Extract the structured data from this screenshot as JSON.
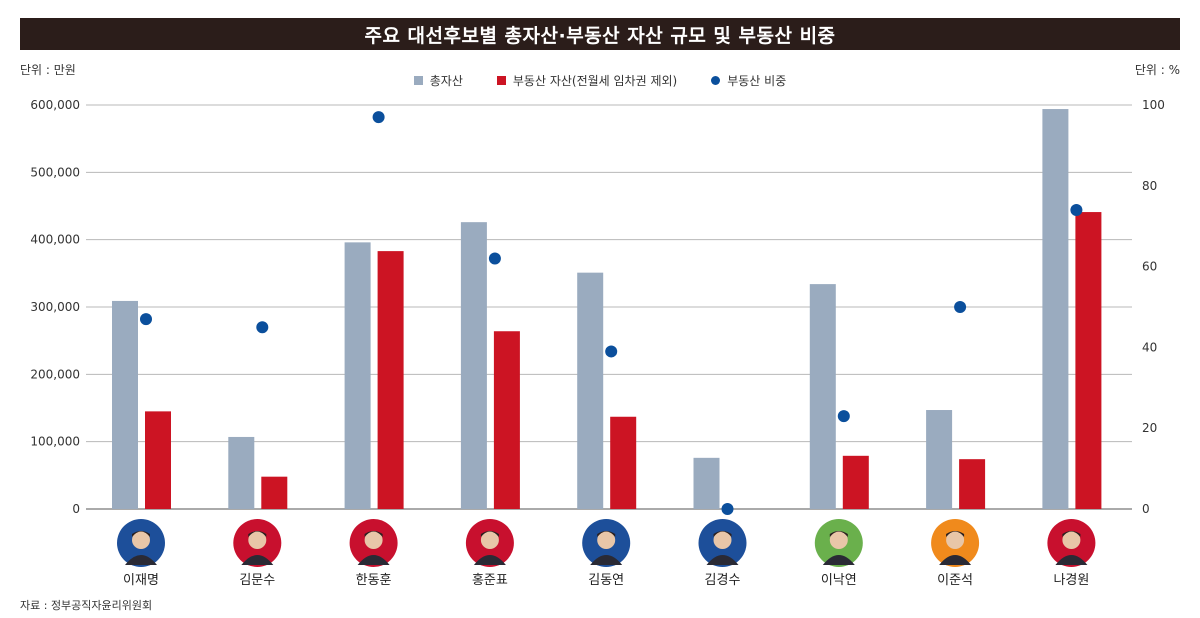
{
  "title": "주요 대선후보별 총자산·부동산 자산 규모 및 부동산 비중",
  "unit_left": "단위 : 만원",
  "unit_right": "단위 : %",
  "source": "자료 : 정부공직자윤리위원회",
  "colors": {
    "total": "#9aabbf",
    "realestate": "#cc1423",
    "ratio": "#0b4f9c",
    "title_bg": "#2b1d1a"
  },
  "chart_data": {
    "type": "bar",
    "categories": [
      "이재명",
      "김문수",
      "한동훈",
      "홍준표",
      "김동연",
      "김경수",
      "이낙연",
      "이준석",
      "나경원"
    ],
    "series": [
      {
        "name": "총자산",
        "axis": "left",
        "values": [
          309000,
          107000,
          396000,
          426000,
          351000,
          76000,
          334000,
          147000,
          594000
        ]
      },
      {
        "name": "부동산 자산(전월세 임차권 제외)",
        "axis": "left",
        "values": [
          145000,
          48000,
          383000,
          264000,
          137000,
          0,
          79000,
          74000,
          441000
        ]
      },
      {
        "name": "부동산 비중",
        "axis": "right",
        "type": "scatter",
        "values": [
          47,
          45,
          97,
          62,
          39,
          0,
          23,
          50,
          74
        ]
      }
    ],
    "ylim_left": [
      0,
      600000
    ],
    "ylim_right": [
      0,
      100
    ],
    "yticks_left": [
      "0",
      "100,000",
      "200,000",
      "300,000",
      "400,000",
      "500,000",
      "600,000"
    ],
    "yticks_right": [
      "0",
      "20",
      "40",
      "60",
      "80",
      "100"
    ],
    "grid": true,
    "legend": "top-center",
    "photo_bg": [
      "#1d4f9a",
      "#c8102e",
      "#c8102e",
      "#c8102e",
      "#1d4f9a",
      "#1d4f9a",
      "#6ab04c",
      "#f08a1c",
      "#c8102e"
    ]
  }
}
